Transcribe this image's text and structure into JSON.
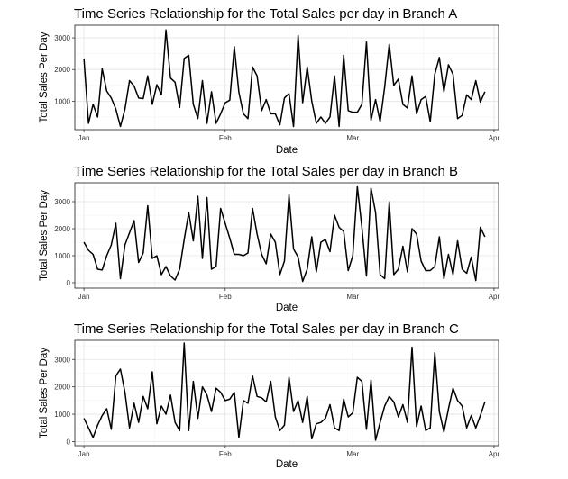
{
  "chart_data": [
    {
      "type": "line",
      "title": "Time Series Relationship for the Total Sales per day in Branch A",
      "xlabel": "Date",
      "ylabel": "Total Sales Per Day",
      "x_ticks": [
        {
          "label": "Jan",
          "day": 0
        },
        {
          "label": "Feb",
          "day": 31
        },
        {
          "label": "Mar",
          "day": 59
        },
        {
          "label": "Apr",
          "day": 90
        }
      ],
      "y_ticks": [
        1000,
        2000,
        3000
      ],
      "xlim": [
        -2,
        91
      ],
      "ylim": [
        100,
        3400
      ],
      "grid": true,
      "x_start": "2019-01-01",
      "values": [
        2350,
        300,
        900,
        500,
        2030,
        1320,
        1100,
        750,
        200,
        750,
        1650,
        1480,
        1100,
        1080,
        1800,
        900,
        1520,
        1200,
        3250,
        1730,
        1600,
        800,
        2350,
        2450,
        900,
        450,
        1650,
        300,
        1300,
        300,
        600,
        950,
        1030,
        2720,
        1280,
        600,
        450,
        2080,
        1800,
        700,
        1050,
        600,
        600,
        250,
        1100,
        1240,
        200,
        3080,
        950,
        2080,
        1000,
        300,
        500,
        300,
        500,
        1800,
        200,
        2450,
        700,
        650,
        650,
        900,
        2870,
        400,
        1050,
        350,
        1450,
        2800,
        1500,
        1700,
        900,
        780,
        1800,
        600,
        1050,
        1150,
        350,
        1850,
        2380,
        1300,
        2150,
        1850,
        450,
        550,
        1200,
        1050,
        1650,
        970,
        1300
      ]
    },
    {
      "type": "line",
      "title": "Time Series Relationship for the Total Sales per day in Branch B",
      "xlabel": "Date",
      "ylabel": "Total Sales Per Day",
      "x_ticks": [
        {
          "label": "Jan",
          "day": 0
        },
        {
          "label": "Feb",
          "day": 31
        },
        {
          "label": "Mar",
          "day": 59
        },
        {
          "label": "Apr",
          "day": 90
        }
      ],
      "y_ticks": [
        0,
        1000,
        2000,
        3000
      ],
      "xlim": [
        -2,
        91
      ],
      "ylim": [
        -200,
        3700
      ],
      "grid": true,
      "x_start": "2019-01-01",
      "values": [
        1500,
        1200,
        1050,
        500,
        470,
        1000,
        1400,
        2200,
        150,
        1400,
        1850,
        2300,
        750,
        1100,
        2850,
        900,
        1000,
        300,
        600,
        250,
        100,
        500,
        1600,
        2600,
        1550,
        3200,
        900,
        3150,
        500,
        600,
        2750,
        2200,
        1650,
        1050,
        1050,
        1000,
        1100,
        2750,
        1800,
        1050,
        700,
        1800,
        1500,
        300,
        800,
        3250,
        1250,
        950,
        50,
        500,
        1700,
        400,
        1500,
        1600,
        1150,
        2500,
        2050,
        1900,
        450,
        1000,
        3550,
        2050,
        250,
        3500,
        2600,
        300,
        150,
        3000,
        300,
        500,
        1350,
        400,
        2000,
        1800,
        800,
        450,
        450,
        600,
        1700,
        150,
        1050,
        300,
        1550,
        500,
        350,
        950,
        80,
        2050,
        1700
      ]
    },
    {
      "type": "line",
      "title": "Time Series Relationship for the Total Sales per day in Branch C",
      "xlabel": "Date",
      "ylabel": "Total Sales Per Day",
      "x_ticks": [
        {
          "label": "Jan",
          "day": 0
        },
        {
          "label": "Feb",
          "day": 31
        },
        {
          "label": "Mar",
          "day": 59
        },
        {
          "label": "Apr",
          "day": 90
        }
      ],
      "y_ticks": [
        0,
        1000,
        2000,
        3000
      ],
      "xlim": [
        -2,
        91
      ],
      "ylim": [
        -150,
        3700
      ],
      "grid": true,
      "x_start": "2019-01-01",
      "values": [
        850,
        500,
        150,
        600,
        950,
        1200,
        450,
        2400,
        2650,
        1800,
        500,
        1400,
        700,
        1650,
        1200,
        2550,
        650,
        1300,
        1000,
        1700,
        700,
        400,
        3600,
        400,
        2200,
        850,
        2000,
        1700,
        1100,
        1950,
        1800,
        1500,
        1550,
        1800,
        150,
        1500,
        1400,
        2400,
        1650,
        1600,
        1450,
        2200,
        900,
        400,
        600,
        2350,
        1100,
        1500,
        700,
        1650,
        100,
        650,
        700,
        850,
        1350,
        500,
        400,
        1550,
        900,
        1050,
        2350,
        2200,
        450,
        2250,
        50,
        700,
        1300,
        1650,
        1450,
        900,
        1350,
        700,
        3450,
        550,
        1300,
        400,
        500,
        3250,
        1100,
        350,
        1200,
        1950,
        1500,
        1300,
        500,
        950,
        500,
        950,
        1450
      ]
    }
  ]
}
